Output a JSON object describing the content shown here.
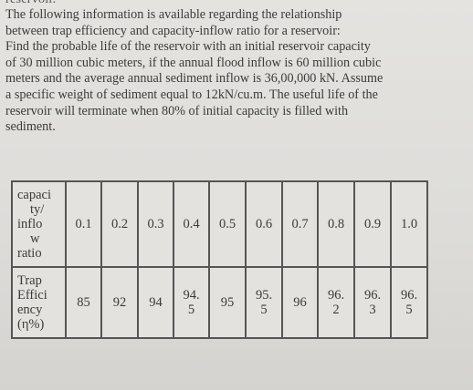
{
  "fragment": "reservoir.",
  "problem_lines": [
    "The following information is available regarding the relationship",
    "between trap efficiency and capacity-inflow ratio for a reservoir:",
    "Find the probable life of the reservoir with an initial reservoir capacity",
    "of 30 million cubic meters, if the annual flood inflow is 60 million cubic",
    "meters and the average annual sediment inflow is 36,00,000 kN. Assume",
    "a specific weight of sediment equal to 12kN/cu.m. The useful life of the",
    "reservoir will terminate when 80% of initial capacity is filled with",
    "sediment."
  ],
  "table": {
    "row1_header_lines": [
      "capaci",
      "ty/",
      "inflo",
      "w",
      "ratio"
    ],
    "row2_header_lines": [
      "Trap",
      "Effici",
      "ency",
      "(η%)"
    ],
    "ratios": [
      "0.1",
      "0.2",
      "0.3",
      "0.4",
      "0.5",
      "0.6",
      "0.7",
      "0.8",
      "0.9",
      "1.0"
    ],
    "efficiencies": [
      [
        "85"
      ],
      [
        "92"
      ],
      [
        "94"
      ],
      [
        "94.",
        "5"
      ],
      [
        "95"
      ],
      [
        "95.",
        "5"
      ],
      [
        "96"
      ],
      [
        "96.",
        "2"
      ],
      [
        "96.",
        "3"
      ],
      [
        "96.",
        "5"
      ]
    ]
  }
}
